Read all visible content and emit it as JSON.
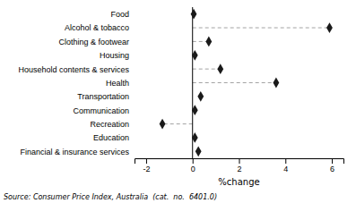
{
  "chart_data": {
    "type": "dot",
    "orientation": "horizontal",
    "categories": [
      "Food",
      "Alcohol & tobacco",
      "Clothing & footwear",
      "Housing",
      "Household contents & services",
      "Health",
      "Transportation",
      "Communication",
      "Recreation",
      "Education",
      "Financial & insurance services"
    ],
    "values": [
      0.05,
      5.9,
      0.7,
      0.1,
      1.2,
      3.6,
      0.35,
      0.1,
      -1.3,
      0.1,
      0.25
    ],
    "line_style": [
      "none",
      "dashed",
      "dashed",
      "none",
      "dashed",
      "dashed",
      "none",
      "none",
      "dashed",
      "none",
      "none"
    ],
    "marker": "diamond",
    "color": "#1a1a1a",
    "xlim": [
      -2.5,
      6.5
    ],
    "xticks": [
      -2,
      0,
      2,
      4,
      6
    ],
    "xlabel": "%change",
    "annotations": [
      "Source: Consumer Price Index, Australia  (cat.  no.  6401.0)"
    ],
    "grid": false
  }
}
